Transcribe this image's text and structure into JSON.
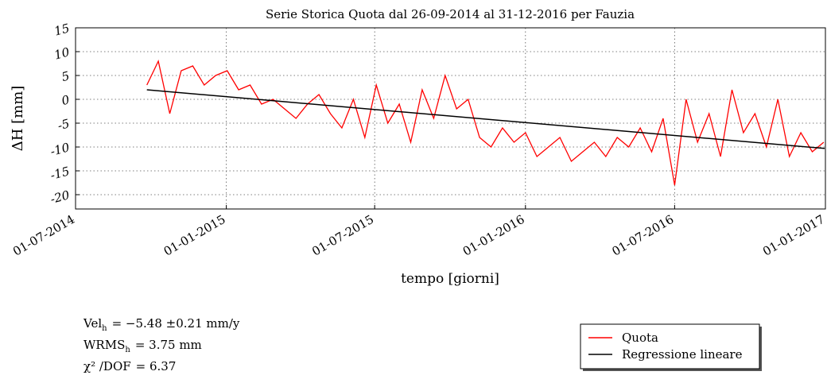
{
  "chart_data": {
    "type": "line",
    "title": "Serie Storica Quota dal 26-09-2014 al 31-12-2016 per Fauzia",
    "x_label": "tempo [giorni]",
    "y_label": "ΔH  [mm]",
    "xlim": [
      "2014-07-01",
      "2017-01-01"
    ],
    "xticks": [
      {
        "value": "2014-07-01",
        "label": "01-07-2014"
      },
      {
        "value": "2015-01-01",
        "label": "01-01-2015"
      },
      {
        "value": "2015-07-01",
        "label": "01-07-2015"
      },
      {
        "value": "2016-01-01",
        "label": "01-01-2016"
      },
      {
        "value": "2016-07-01",
        "label": "01-07-2016"
      },
      {
        "value": "2017-01-01",
        "label": "01-01-2017"
      }
    ],
    "ylim": [
      -23,
      15
    ],
    "yticks": [
      -20,
      -15,
      -10,
      -5,
      0,
      5,
      10,
      15
    ],
    "grid": true,
    "legend": "below-right",
    "series": [
      {
        "name": "Quota",
        "color": "#ff0000",
        "x": [
          "2014-09-26",
          "2014-10-10",
          "2014-10-24",
          "2014-11-07",
          "2014-11-21",
          "2014-12-05",
          "2014-12-19",
          "2015-01-02",
          "2015-01-16",
          "2015-01-30",
          "2015-02-13",
          "2015-02-27",
          "2015-03-13",
          "2015-03-27",
          "2015-04-10",
          "2015-04-24",
          "2015-05-08",
          "2015-05-22",
          "2015-06-05",
          "2015-06-19",
          "2015-07-03",
          "2015-07-17",
          "2015-07-31",
          "2015-08-14",
          "2015-08-28",
          "2015-09-11",
          "2015-09-25",
          "2015-10-09",
          "2015-10-23",
          "2015-11-06",
          "2015-11-20",
          "2015-12-04",
          "2015-12-18",
          "2016-01-01",
          "2016-01-15",
          "2016-01-29",
          "2016-02-12",
          "2016-02-26",
          "2016-03-11",
          "2016-03-25",
          "2016-04-08",
          "2016-04-22",
          "2016-05-06",
          "2016-05-20",
          "2016-06-03",
          "2016-06-17",
          "2016-07-01",
          "2016-07-15",
          "2016-07-29",
          "2016-08-12",
          "2016-08-26",
          "2016-09-09",
          "2016-09-23",
          "2016-10-07",
          "2016-10-21",
          "2016-11-04",
          "2016-11-18",
          "2016-12-02",
          "2016-12-16",
          "2016-12-30"
        ],
        "values": [
          3,
          8,
          -3,
          6,
          7,
          3,
          5,
          6,
          2,
          3,
          -1,
          0,
          -2,
          -4,
          -1,
          1,
          -3,
          -6,
          0,
          -8,
          3,
          -5,
          -1,
          -9,
          2,
          -4,
          5,
          -2,
          0,
          -8,
          -10,
          -6,
          -9,
          -7,
          -12,
          -10,
          -8,
          -13,
          -11,
          -9,
          -12,
          -8,
          -10,
          -6,
          -11,
          -4,
          -18,
          0,
          -9,
          -3,
          -12,
          2,
          -7,
          -3,
          -10,
          0,
          -12,
          -7,
          -11,
          -9
        ]
      },
      {
        "name": "Regressione lineare",
        "color": "#000000",
        "x": [
          "2014-09-26",
          "2016-12-31"
        ],
        "values": [
          2.0,
          -10.3
        ]
      }
    ]
  },
  "annotations": [
    {
      "label": "Vel",
      "sub": "h",
      "rest": "=  −5.48 ±0.21  mm/y"
    },
    {
      "label": "WRMS",
      "sub": "h",
      "rest": "=  3.75  mm"
    },
    {
      "label": "χ² /DOF",
      "sub": "",
      "rest": "=  6.37"
    }
  ]
}
